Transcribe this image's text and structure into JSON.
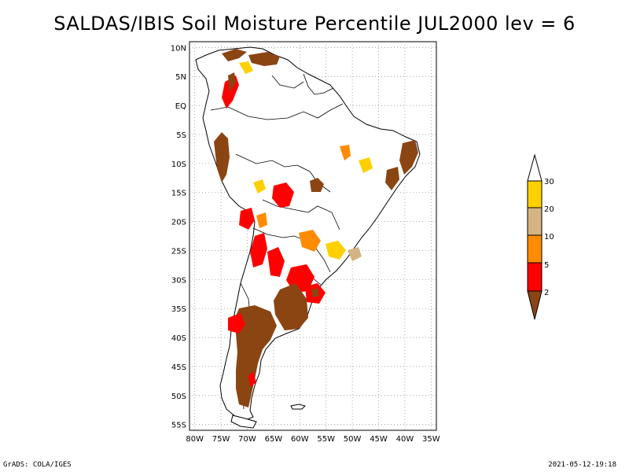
{
  "title": "SALDAS/IBIS Soil Moisture Percentile JUL2000 lev = 6",
  "map": {
    "lat_labels": [
      "10N",
      "5N",
      "EQ",
      "5S",
      "10S",
      "15S",
      "20S",
      "25S",
      "30S",
      "35S",
      "40S",
      "45S",
      "50S",
      "55S"
    ],
    "lon_labels": [
      "80W",
      "75W",
      "70W",
      "65W",
      "60W",
      "55W",
      "50W",
      "45W",
      "40W",
      "35W"
    ],
    "lat_range": [
      -56,
      11
    ],
    "lon_range": [
      -81,
      -34
    ]
  },
  "legend": {
    "labels": [
      "30",
      "20",
      "10",
      "5",
      "2"
    ],
    "colors": {
      "above_30": "#ffffff",
      "20_30": "#ffd000",
      "10_20": "#d4b483",
      "5_10": "#ff8c00",
      "2_5": "#ff0000",
      "below_2": "#8b4513"
    }
  },
  "footer": {
    "left": "GrADS: COLA/IGES",
    "right": "2021-05-12-19:18"
  }
}
